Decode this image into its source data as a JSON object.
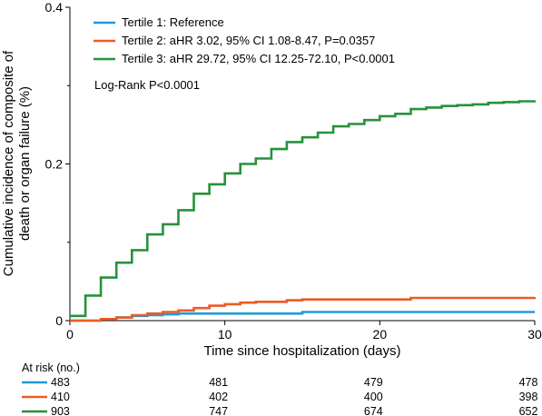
{
  "chart_data": {
    "type": "line",
    "step": true,
    "xlabel": "Time since hospitalization (days)",
    "ylabel": [
      "Cumulative incidence of composite of",
      "death or organ failure (%)"
    ],
    "xlim": [
      0,
      30
    ],
    "ylim": [
      0,
      0.4
    ],
    "xticks": [
      "0",
      "10",
      "20",
      "30"
    ],
    "yticks": [
      "0",
      "0.2",
      "0.4"
    ],
    "grid": false,
    "legend_position": "top-left",
    "annotation": "Log-Rank P<0.0001",
    "series": [
      {
        "name": "Tertile 1: Reference",
        "color": "#1f9bd7",
        "x": [
          0,
          2,
          3,
          4,
          5,
          6,
          7,
          15,
          30
        ],
        "y": [
          0,
          0.002,
          0.004,
          0.006,
          0.007,
          0.008,
          0.009,
          0.011,
          0.011
        ]
      },
      {
        "name": "Tertile 2: aHR 3.02, 95% CI 1.08-8.47, P=0.0357",
        "color": "#ec5b24",
        "x": [
          0,
          2,
          3,
          4,
          5,
          6,
          7,
          8,
          9,
          10,
          11,
          12,
          14,
          15,
          22,
          30
        ],
        "y": [
          0,
          0.002,
          0.004,
          0.007,
          0.009,
          0.011,
          0.013,
          0.016,
          0.019,
          0.021,
          0.023,
          0.024,
          0.026,
          0.027,
          0.029,
          0.03
        ]
      },
      {
        "name": "Tertile 3: aHR 29.72, 95% CI 12.25-72.10, P<0.0001",
        "color": "#27923b",
        "x": [
          0,
          1,
          2,
          3,
          4,
          5,
          6,
          7,
          8,
          9,
          10,
          11,
          12,
          13,
          14,
          15,
          16,
          17,
          18,
          19,
          20,
          21,
          22,
          23,
          24,
          25,
          26,
          27,
          28,
          29,
          30
        ],
        "y": [
          0.006,
          0.032,
          0.055,
          0.074,
          0.09,
          0.11,
          0.123,
          0.141,
          0.162,
          0.174,
          0.188,
          0.2,
          0.207,
          0.219,
          0.228,
          0.234,
          0.24,
          0.248,
          0.251,
          0.256,
          0.261,
          0.264,
          0.27,
          0.272,
          0.274,
          0.275,
          0.276,
          0.278,
          0.279,
          0.28,
          0.281
        ]
      }
    ],
    "risk_table": {
      "title": "At risk (no.)",
      "columns_x": [
        0,
        10,
        20,
        30
      ],
      "rows": [
        {
          "color": "#1f9bd7",
          "values": [
            "483",
            "481",
            "479",
            "478"
          ]
        },
        {
          "color": "#ec5b24",
          "values": [
            "410",
            "402",
            "400",
            "398"
          ]
        },
        {
          "color": "#27923b",
          "values": [
            "903",
            "747",
            "674",
            "652"
          ]
        }
      ]
    }
  }
}
